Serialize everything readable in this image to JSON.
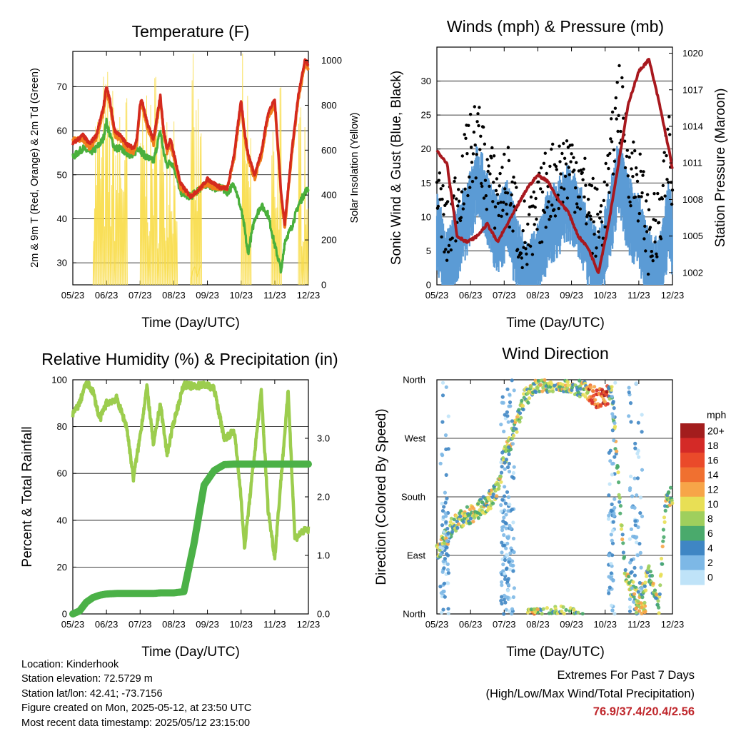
{
  "colors": {
    "temp_red": "#d42a1e",
    "temp_orange": "#f07f1c",
    "td_green": "#4ab03c",
    "solar_yellow": "#f8dc46",
    "wind_blue": "#5b9bd5",
    "gust_black": "#000000",
    "pressure_maroon": "#a8181e",
    "rh_green": "#9ccd4e",
    "rain_green": "#4bb147",
    "extremes_red": "#c0282d"
  },
  "x_ticks": [
    "05/23",
    "06/23",
    "07/23",
    "08/23",
    "09/23",
    "10/23",
    "11/23",
    "12/23"
  ],
  "chart_data": [
    {
      "type": "line",
      "title": "Temperature (F)",
      "xlabel": "Time (Day/UTC)",
      "ylabel": "2m & 9m T (Red, Orange) & 2m Td (Green)",
      "y2label": "Solar Insolation (Yellow)",
      "ylim": [
        25,
        78
      ],
      "yticks": [
        30,
        40,
        50,
        60,
        70
      ],
      "y2lim": [
        0,
        1040
      ],
      "y2ticks": [
        0,
        200,
        400,
        600,
        800,
        1000
      ],
      "grid": true,
      "x": [
        0,
        0.3,
        0.5,
        0.7,
        0.9,
        1.0,
        1.1,
        1.2,
        1.25,
        1.4,
        1.6,
        1.8,
        1.9,
        2.0,
        2.05,
        2.2,
        2.4,
        2.6,
        2.7,
        2.8,
        2.9,
        3.0,
        3.2,
        3.5,
        3.8,
        4.0,
        4.2,
        4.4,
        4.6,
        4.8,
        5.0,
        5.1,
        5.2,
        5.4,
        5.6,
        5.8,
        6.0,
        6.2,
        6.3,
        6.5,
        6.7,
        6.9,
        7.0
      ],
      "series": [
        {
          "values": [
            57,
            59,
            57,
            59,
            65,
            70,
            67,
            62,
            60,
            59,
            57,
            56,
            58,
            66,
            67,
            62,
            58,
            68,
            60,
            56,
            58,
            55,
            48,
            45,
            47,
            49,
            48,
            47,
            47,
            55,
            67,
            60,
            55,
            50,
            55,
            64,
            67,
            45,
            39,
            55,
            68,
            76,
            75
          ]
        },
        {
          "values": [
            58,
            58,
            56,
            58,
            64,
            69,
            66,
            61,
            59,
            58,
            56,
            55,
            57,
            65,
            66,
            61,
            57,
            67,
            59,
            55,
            57,
            54,
            47,
            45,
            47,
            48,
            47,
            47,
            47,
            54,
            66,
            59,
            54,
            49,
            54,
            63,
            66,
            44,
            38,
            54,
            67,
            75,
            74
          ]
        },
        {
          "values": [
            54,
            56,
            55,
            56,
            58,
            62,
            59,
            57,
            56,
            56,
            55,
            54,
            56,
            56,
            55,
            54,
            53,
            60,
            55,
            52,
            53,
            52,
            46,
            45,
            47,
            48,
            47,
            47,
            46,
            48,
            42,
            38,
            32,
            40,
            43,
            41,
            34,
            28,
            35,
            38,
            43,
            46,
            47
          ]
        }
      ]
    },
    {
      "type": "line",
      "title": "Winds (mph) & Pressure (mb)",
      "xlabel": "Time (Day/UTC)",
      "ylabel": "Sonic Wind & Gust (Blue, Black)",
      "y2label": "Station Pressure (Maroon)",
      "ylim": [
        0,
        35
      ],
      "yticks": [
        0,
        5,
        10,
        15,
        20,
        25,
        30
      ],
      "y2lim": [
        1001,
        1020.5
      ],
      "y2ticks": [
        1002,
        1005,
        1008,
        1011,
        1014,
        1017,
        1020
      ],
      "grid": true,
      "x": [
        0,
        0.3,
        0.6,
        0.9,
        1.2,
        1.5,
        1.8,
        2.1,
        2.4,
        2.7,
        3.0,
        3.3,
        3.6,
        3.9,
        4.2,
        4.5,
        4.8,
        5.1,
        5.4,
        5.7,
        6.0,
        6.3,
        6.6,
        6.9,
        7.0
      ],
      "series": [
        {
          "values": [
            10,
            4,
            8,
            12,
            18,
            13,
            9,
            12,
            6,
            2,
            6,
            10,
            12,
            14,
            12,
            7,
            4,
            10,
            18,
            12,
            10,
            4,
            3,
            12,
            9
          ]
        },
        {
          "values": [
            14,
            7,
            13,
            18,
            22,
            16,
            13,
            15,
            9,
            6,
            10,
            15,
            16,
            18,
            16,
            12,
            8,
            15,
            28,
            18,
            15,
            7,
            8,
            20,
            14
          ]
        },
        {
          "values": [
            1012,
            1011,
            1005,
            1004.5,
            1005,
            1006,
            1004.5,
            1006,
            1007.5,
            1009,
            1010,
            1009.5,
            1008,
            1007,
            1005,
            1004,
            1002,
            1006,
            1011,
            1016,
            1018.5,
            1019.5,
            1016,
            1012,
            1010.5
          ]
        }
      ]
    },
    {
      "type": "line",
      "title": "Relative Humidity (%) & Precipitation (in)",
      "xlabel": "Time (Day/UTC)",
      "ylabel": "Percent & Total Rainfall",
      "ylim": [
        0,
        100
      ],
      "yticks": [
        0,
        20,
        40,
        60,
        80,
        100
      ],
      "y2lim": [
        0,
        4.0
      ],
      "y2ticks": [
        0.0,
        1.0,
        2.0,
        3.0
      ],
      "grid": true,
      "x": [
        0,
        0.2,
        0.4,
        0.6,
        0.8,
        1.0,
        1.3,
        1.6,
        1.8,
        2.0,
        2.2,
        2.4,
        2.6,
        2.8,
        3.0,
        3.3,
        3.6,
        3.9,
        4.2,
        4.5,
        4.8,
        5.0,
        5.1,
        5.3,
        5.6,
        5.8,
        6.0,
        6.2,
        6.4,
        6.6,
        6.8,
        7.0
      ],
      "series": [
        {
          "values": [
            85,
            90,
            99,
            95,
            83,
            90,
            92,
            80,
            58,
            76,
            97,
            72,
            90,
            68,
            82,
            98,
            97,
            98,
            96,
            75,
            78,
            50,
            28,
            55,
            95,
            45,
            24,
            60,
            95,
            32,
            35,
            36
          ]
        },
        {
          "values": [
            0.0,
            0.05,
            0.2,
            0.28,
            0.32,
            0.34,
            0.35,
            0.35,
            0.35,
            0.35,
            0.35,
            0.35,
            0.36,
            0.36,
            0.36,
            0.38,
            1.2,
            2.2,
            2.45,
            2.55,
            2.56,
            2.56,
            2.56,
            2.56,
            2.56,
            2.56,
            2.56,
            2.56,
            2.56,
            2.56,
            2.56,
            2.56
          ]
        }
      ]
    },
    {
      "type": "scatter",
      "title": "Wind Direction",
      "xlabel": "Time (Day/UTC)",
      "ylabel": "Direction (Colored By Speed)",
      "yticks": [
        "North",
        "East",
        "South",
        "West",
        "North"
      ],
      "colorbar": {
        "unit": "mph",
        "labels": [
          "20+",
          "18",
          "16",
          "14",
          "12",
          "10",
          "8",
          "6",
          "4",
          "2",
          "0"
        ],
        "colors": [
          "#a31d1d",
          "#d42a27",
          "#ea4a2a",
          "#f07030",
          "#f7a548",
          "#e8df55",
          "#9fcf5d",
          "#4aaa6c",
          "#3f86c4",
          "#7db8e6",
          "#bfe3f8"
        ]
      },
      "x": [
        0.1,
        0.5,
        0.9,
        1.2,
        1.5,
        1.8,
        2.0,
        2.3,
        2.6,
        2.9,
        3.2,
        3.6,
        4.0,
        4.4,
        4.8,
        5.2,
        5.6,
        6.0,
        6.3,
        6.6,
        6.8,
        7.0
      ],
      "values": [
        100,
        140,
        150,
        160,
        170,
        190,
        240,
        280,
        330,
        350,
        355,
        358,
        355,
        345,
        330,
        340,
        60,
        20,
        60,
        10,
        180,
        180
      ]
    }
  ],
  "info": {
    "location": "Location: Kinderhook",
    "elevation": "Station elevation: 72.5729 m",
    "latlon": "Station lat/lon: 42.41; -73.7156",
    "created": "Figure created on Mon, 2025-05-12, at 23:50 UTC",
    "latest": "Most recent data timestamp: 2025/05/12 23:15:00"
  },
  "extremes": {
    "line1": "Extremes For Past 7 Days",
    "line2": "(High/Low/Max Wind/Total Precipitation)",
    "values": "76.9/37.4/20.4/2.56"
  }
}
